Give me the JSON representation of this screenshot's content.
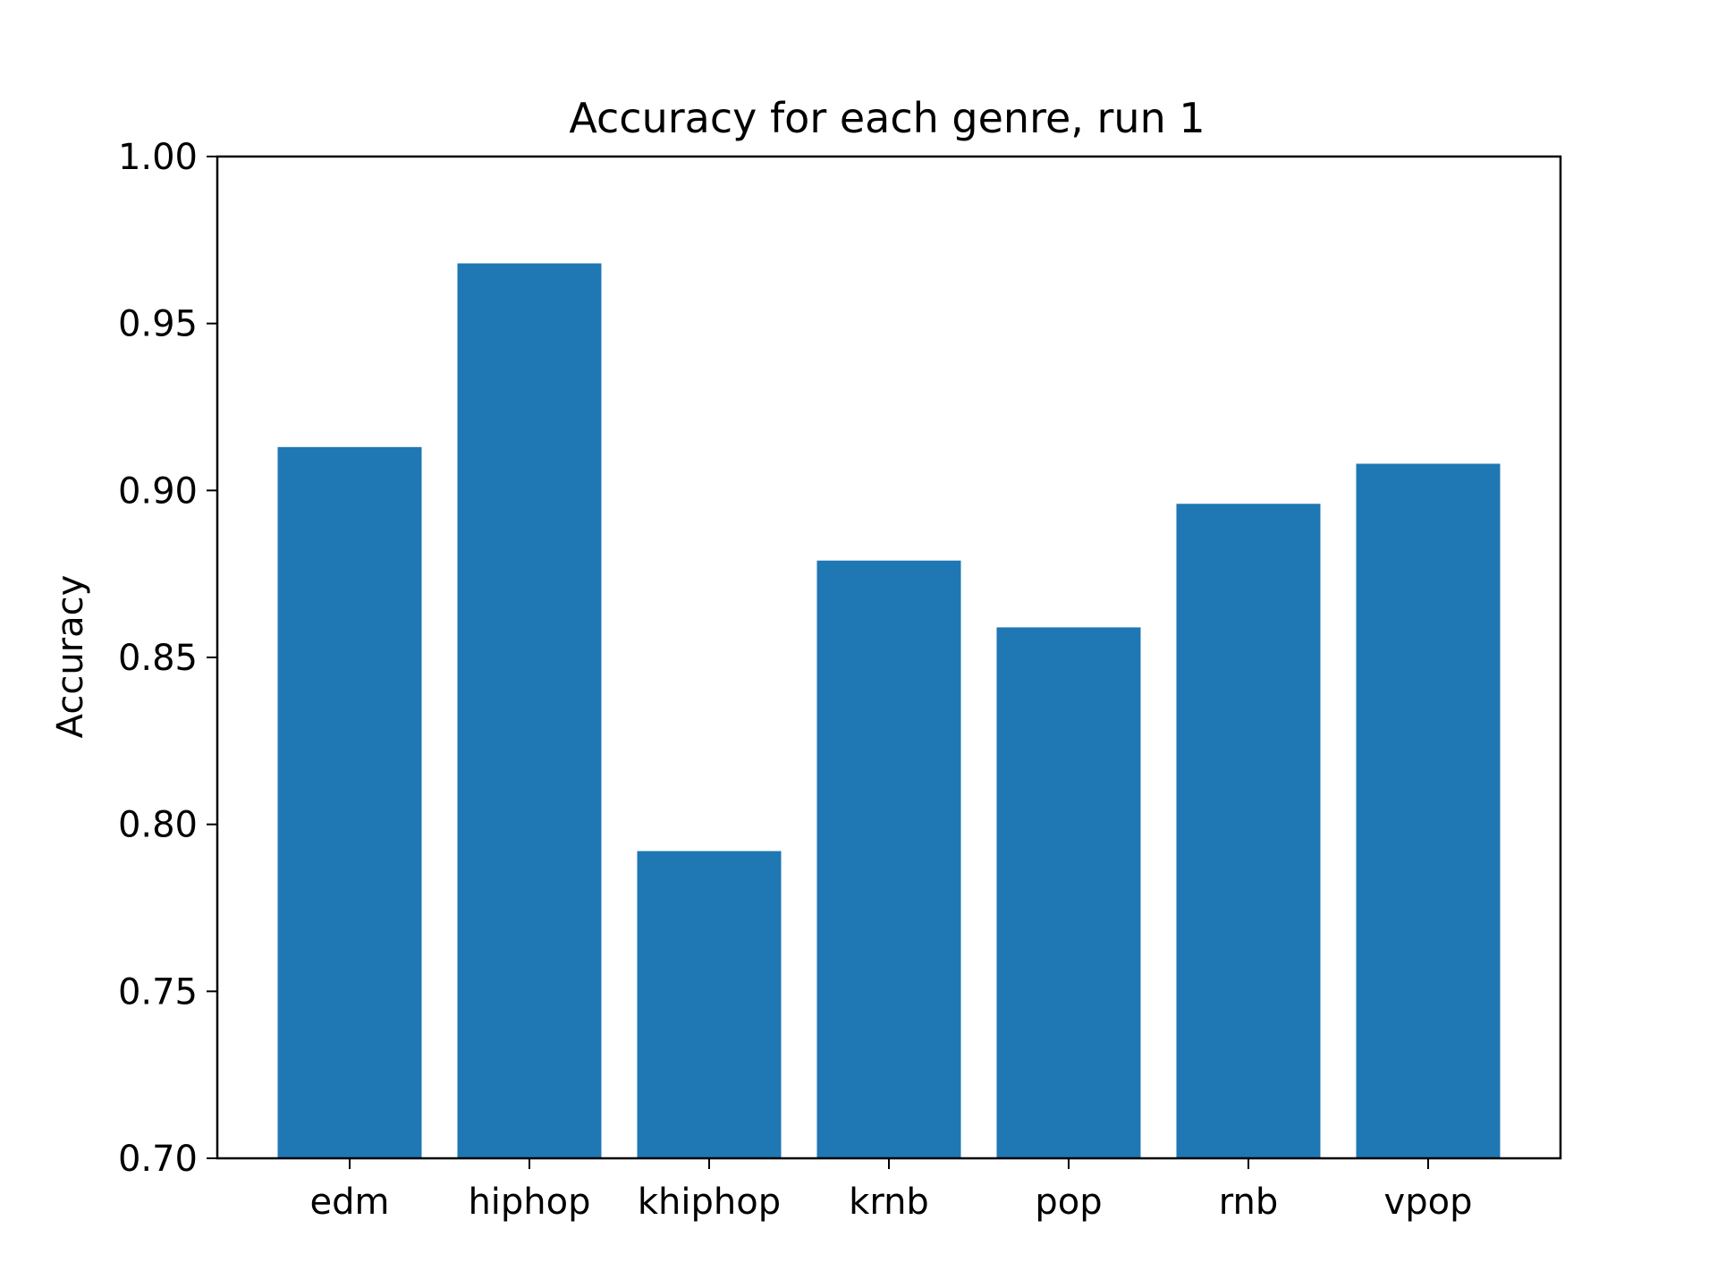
{
  "chart_data": {
    "type": "bar",
    "title": "Accuracy for each genre, run 1",
    "xlabel": "",
    "ylabel": "Accuracy",
    "categories": [
      "edm",
      "hiphop",
      "khiphop",
      "krnb",
      "pop",
      "rnb",
      "vpop"
    ],
    "values": [
      0.913,
      0.968,
      0.792,
      0.879,
      0.859,
      0.896,
      0.908
    ],
    "ylim": [
      0.7,
      1.0
    ],
    "yticks": [
      "0.70",
      "0.75",
      "0.80",
      "0.85",
      "0.90",
      "0.95",
      "1.00"
    ],
    "grid": false,
    "bar_color": "#1f77b4"
  }
}
